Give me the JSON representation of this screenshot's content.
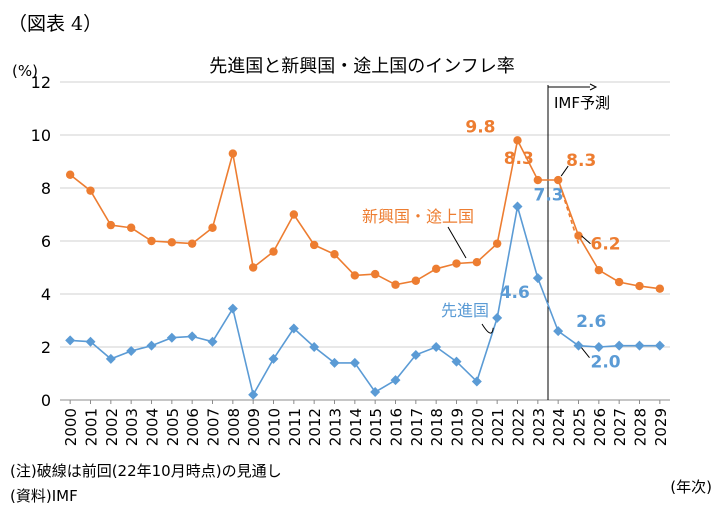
{
  "figure_label": "（図表 4）",
  "chart_data": {
    "type": "line",
    "title": "先進国と新興国・途上国のインフレ率",
    "ylabel": "(%)",
    "xlabel": "(年次)",
    "ylim": [
      0,
      12
    ],
    "yticks": [
      "0",
      "2",
      "4",
      "6",
      "8",
      "10",
      "12"
    ],
    "grid": true,
    "categories": [
      "2000",
      "2001",
      "2002",
      "2003",
      "2004",
      "2005",
      "2006",
      "2007",
      "2008",
      "2009",
      "2010",
      "2011",
      "2012",
      "2013",
      "2014",
      "2015",
      "2016",
      "2017",
      "2018",
      "2019",
      "2020",
      "2021",
      "2022",
      "2023",
      "2024",
      "2025",
      "2026",
      "2027",
      "2028",
      "2029"
    ],
    "series": [
      {
        "name": "新興国・途上国",
        "color": "#ED7D31",
        "marker": "circle",
        "values": [
          8.5,
          7.9,
          6.6,
          6.5,
          6.0,
          5.95,
          5.9,
          6.5,
          9.3,
          5.0,
          5.6,
          7.0,
          5.85,
          5.5,
          4.7,
          4.75,
          4.35,
          4.5,
          4.95,
          5.15,
          5.2,
          5.9,
          9.8,
          8.3,
          8.3,
          6.2,
          4.9,
          4.45,
          4.3,
          4.2
        ],
        "previous_forecast": {
          "from": "2024",
          "values": [
            8.3,
            5.9
          ]
        }
      },
      {
        "name": "先進国",
        "color": "#5B9BD5",
        "marker": "diamond",
        "values": [
          2.25,
          2.2,
          1.55,
          1.85,
          2.05,
          2.35,
          2.4,
          2.2,
          3.45,
          0.2,
          1.55,
          2.7,
          2.0,
          1.4,
          1.4,
          0.3,
          0.75,
          1.7,
          2.0,
          1.45,
          0.7,
          3.1,
          7.3,
          4.6,
          2.6,
          2.05,
          2.0,
          2.05,
          2.05,
          2.05
        ]
      }
    ],
    "data_labels": [
      {
        "series": "新興国・途上国",
        "x": "2022",
        "text": "9.8"
      },
      {
        "series": "新興国・途上国",
        "x": "2023",
        "text": "8.3"
      },
      {
        "series": "新興国・途上国",
        "x": "2024",
        "text": "8.3"
      },
      {
        "series": "新興国・途上国",
        "x": "2025",
        "text": "6.2"
      },
      {
        "series": "先進国",
        "x": "2022",
        "text": "7.3"
      },
      {
        "series": "先進国",
        "x": "2023",
        "text": "4.6"
      },
      {
        "series": "先進国",
        "x": "2024",
        "text": "2.6"
      },
      {
        "series": "先進国",
        "x": "2025",
        "text": "2.0"
      }
    ],
    "forecast_marker": {
      "x": "2024",
      "label": "IMF予測"
    }
  },
  "footnotes": {
    "note": "(注)破線は前回(22年10月時点)の見通し",
    "source": "(資料)IMF"
  }
}
